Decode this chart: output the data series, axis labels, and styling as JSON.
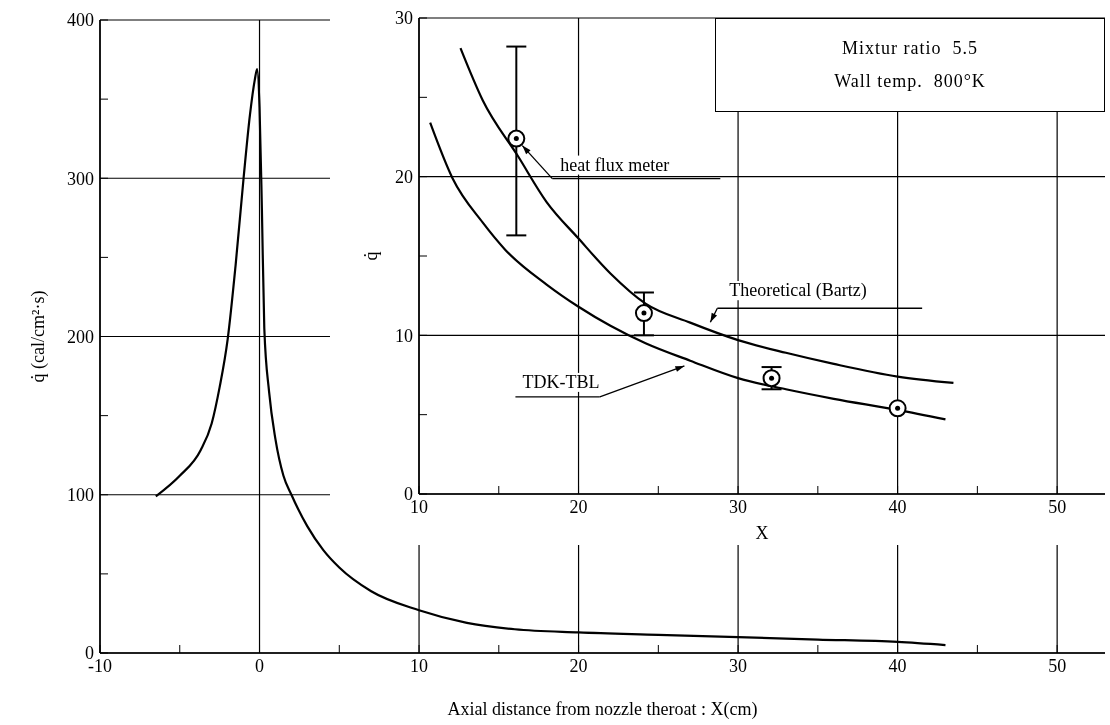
{
  "chart_data": [
    {
      "type": "line",
      "xlabel": "Axial distance from nozzle theroat : X(cm)",
      "ylabel": "q̇  (cal/cm²·s)",
      "xlim": [
        -10,
        53
      ],
      "xticks": [
        -10,
        {
          "value": -5,
          "label": null
        },
        0,
        {
          "value": 5,
          "label": null
        },
        10,
        {
          "value": 15,
          "label": null
        },
        20,
        {
          "value": 25,
          "label": null
        },
        30,
        {
          "value": 35,
          "label": null
        },
        40,
        {
          "value": 45,
          "label": null
        },
        50
      ],
      "ylim": [
        0,
        400
      ],
      "yticks": [
        0,
        {
          "value": 50,
          "label": null
        },
        100,
        {
          "value": 150,
          "label": null
        },
        200,
        {
          "value": 250,
          "label": null
        },
        300,
        {
          "value": 350,
          "label": null
        },
        400
      ],
      "grid": true,
      "series": [
        {
          "color": "#000000",
          "x": [
            -6.5,
            -5,
            -3.7,
            -3,
            -2.5,
            -2,
            -1.5,
            -1,
            -0.6,
            -0.3,
            -0.15,
            0,
            0.15,
            0.3,
            0.6,
            1,
            1.5,
            2,
            3,
            4,
            5,
            7,
            10,
            13,
            16,
            20,
            25,
            30,
            35,
            40,
            43
          ],
          "values": [
            99,
            112,
            128,
            145,
            168,
            198,
            245,
            300,
            340,
            362,
            369,
            345,
            280,
            205,
            165,
            135,
            112,
            100,
            80,
            65,
            54,
            39,
            27,
            19,
            15,
            13,
            11.5,
            10,
            8.5,
            7,
            5
          ]
        }
      ]
    },
    {
      "type": "line",
      "xlabel": "X",
      "ylabel": "q̇",
      "xlim": [
        10,
        53
      ],
      "xticks": [
        10,
        {
          "value": 15,
          "label": null
        },
        20,
        {
          "value": 25,
          "label": null
        },
        30,
        {
          "value": 35,
          "label": null
        },
        40,
        {
          "value": 45,
          "label": null
        },
        50
      ],
      "ylim": [
        0,
        30
      ],
      "yticks": [
        0,
        {
          "value": 5,
          "label": null
        },
        10,
        {
          "value": 15,
          "label": null
        },
        20,
        {
          "value": 25,
          "label": null
        },
        30
      ],
      "grid": true,
      "annotations": [
        {
          "text": "heat flux meter",
          "x": 16.1,
          "y": 22.4
        },
        {
          "text": "Theoretical (Bartz)",
          "x": 28.2,
          "y": 10.7
        },
        {
          "text": "TDK-TBL",
          "x": 26.7,
          "y": 8.2
        },
        "Mixtur ratio  5.5",
        "Wall temp.  800°K"
      ],
      "series": [
        {
          "type": "line",
          "color": "#000000",
          "x": [
            12.6,
            14,
            16.2,
            18,
            20,
            22,
            24.2,
            27,
            30,
            33,
            36,
            40,
            43.5
          ],
          "values": [
            28.1,
            24.8,
            21.3,
            18.4,
            16.1,
            13.9,
            12.0,
            10.8,
            9.7,
            8.9,
            8.2,
            7.4,
            7.0
          ]
        },
        {
          "type": "line",
          "color": "#000000",
          "x": [
            10.7,
            12.1,
            14,
            15.4,
            18,
            20,
            22,
            24.2,
            27,
            30,
            33,
            36,
            40,
            43
          ],
          "values": [
            23.4,
            19.9,
            17.1,
            15.4,
            13.2,
            11.8,
            10.6,
            9.5,
            8.4,
            7.3,
            6.6,
            6.0,
            5.3,
            4.7
          ]
        },
        {
          "type": "scatter",
          "marker": "circle",
          "color": "#000000",
          "x": [
            16.1,
            24.1,
            32.1,
            40
          ],
          "values": [
            22.4,
            11.4,
            7.3,
            5.4
          ],
          "errors": [
            [
              16.3,
              28.2
            ],
            [
              10.0,
              12.7
            ],
            [
              6.6,
              8.0
            ],
            null
          ]
        }
      ]
    }
  ]
}
